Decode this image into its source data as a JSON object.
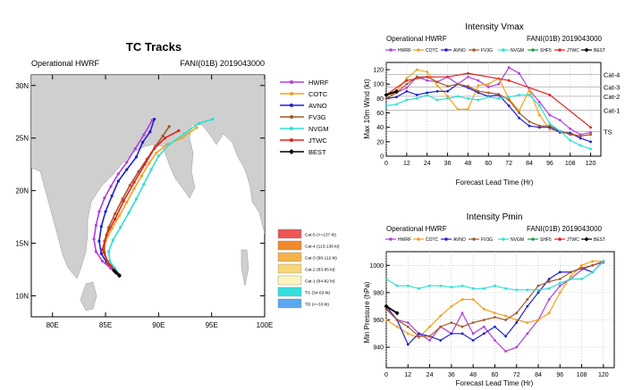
{
  "chart_data": [
    {
      "type": "map",
      "title": "TC Tracks",
      "left_label": "Operational HWRF",
      "right_label": "FANI(01B) 2019043000",
      "lon_range": [
        78,
        100
      ],
      "lat_range": [
        8,
        31
      ],
      "lon_ticks": [
        "80E",
        "85E",
        "90E",
        "95E",
        "100E"
      ],
      "lat_ticks": [
        "10N",
        "15N",
        "20N",
        "25N",
        "30N"
      ],
      "legend": [
        {
          "name": "HWRF",
          "color": "#b040e0"
        },
        {
          "name": "COTC",
          "color": "#f5a020"
        },
        {
          "name": "AVNO",
          "color": "#2020d0"
        },
        {
          "name": "FV3G",
          "color": "#a05a2c"
        },
        {
          "name": "NVGM",
          "color": "#30e0d0"
        },
        {
          "name": "JTWC",
          "color": "#e82020"
        },
        {
          "name": "BEST",
          "color": "#000000"
        }
      ],
      "intensity_legend": [
        {
          "label": "Cat-5 (>=137 kt)",
          "color": "#ee5555"
        },
        {
          "label": "Cat-4 (113-136 kt)",
          "color": "#f08a2a"
        },
        {
          "label": "Cat-3 (96-112 kt)",
          "color": "#f6b24a"
        },
        {
          "label": "Cat-2 (83-95 kt)",
          "color": "#f7d77a"
        },
        {
          "label": "Cat-1 (64-82 kt)",
          "color": "#fbf3c0"
        },
        {
          "label": "TS (34-63 kt)",
          "color": "#33e0e0"
        },
        {
          "label": "TD (<=33 kt)",
          "color": "#5aa8ee"
        }
      ],
      "tracks": [
        {
          "name": "HWRF",
          "points": [
            [
              86.3,
              12.0
            ],
            [
              85.5,
              12.6
            ],
            [
              84.7,
              13.3
            ],
            [
              84.1,
              14.2
            ],
            [
              83.9,
              15.4
            ],
            [
              84.1,
              16.7
            ],
            [
              84.4,
              18.0
            ],
            [
              84.9,
              19.3
            ],
            [
              85.5,
              20.4
            ],
            [
              86.2,
              21.6
            ],
            [
              87.0,
              22.7
            ],
            [
              87.8,
              24.0
            ],
            [
              88.6,
              25.3
            ],
            [
              89.4,
              26.7
            ]
          ]
        },
        {
          "name": "COTC",
          "points": [
            [
              86.3,
              12.0
            ],
            [
              85.8,
              12.6
            ],
            [
              85.2,
              13.3
            ],
            [
              84.8,
              14.1
            ],
            [
              85.0,
              15.2
            ],
            [
              85.6,
              16.4
            ],
            [
              86.3,
              17.6
            ],
            [
              87.0,
              18.9
            ],
            [
              87.7,
              20.2
            ],
            [
              88.4,
              21.4
            ],
            [
              89.1,
              22.6
            ],
            [
              89.8,
              23.6
            ],
            [
              90.8,
              24.4
            ],
            [
              92.2,
              25.0
            ],
            [
              93.6,
              26.0
            ]
          ]
        },
        {
          "name": "AVNO",
          "points": [
            [
              86.3,
              12.0
            ],
            [
              85.7,
              12.6
            ],
            [
              85.1,
              13.2
            ],
            [
              84.6,
              14.0
            ],
            [
              84.4,
              15.2
            ],
            [
              84.6,
              16.6
            ],
            [
              85.0,
              18.0
            ],
            [
              85.6,
              19.5
            ],
            [
              86.2,
              20.9
            ],
            [
              87.0,
              22.0
            ],
            [
              87.9,
              23.2
            ],
            [
              88.5,
              24.6
            ],
            [
              89.2,
              25.6
            ],
            [
              89.6,
              26.8
            ]
          ]
        },
        {
          "name": "FV3G",
          "points": [
            [
              86.3,
              12.0
            ],
            [
              85.8,
              12.6
            ],
            [
              85.2,
              13.2
            ],
            [
              84.9,
              14.1
            ],
            [
              84.9,
              15.2
            ],
            [
              85.3,
              16.5
            ],
            [
              85.9,
              17.8
            ],
            [
              86.6,
              19.2
            ],
            [
              87.3,
              20.5
            ],
            [
              88.1,
              21.8
            ],
            [
              88.9,
              23.0
            ],
            [
              89.7,
              24.2
            ],
            [
              90.4,
              25.2
            ],
            [
              91.0,
              26.1
            ]
          ]
        },
        {
          "name": "NVGM",
          "points": [
            [
              86.3,
              12.0
            ],
            [
              85.9,
              12.6
            ],
            [
              85.4,
              13.3
            ],
            [
              85.3,
              14.2
            ],
            [
              85.7,
              15.3
            ],
            [
              86.4,
              16.5
            ],
            [
              87.2,
              17.9
            ],
            [
              87.9,
              19.2
            ],
            [
              88.6,
              20.6
            ],
            [
              89.3,
              22.0
            ],
            [
              90.0,
              23.3
            ],
            [
              91.0,
              24.4
            ],
            [
              92.4,
              25.4
            ],
            [
              93.8,
              26.4
            ],
            [
              95.1,
              26.8
            ]
          ]
        },
        {
          "name": "JTWC",
          "points": [
            [
              86.3,
              12.0
            ],
            [
              85.3,
              13.0
            ],
            [
              84.7,
              14.4
            ],
            [
              85.1,
              15.8
            ],
            [
              85.9,
              17.3
            ],
            [
              86.7,
              19.0
            ],
            [
              87.7,
              20.8
            ],
            [
              88.7,
              22.5
            ],
            [
              89.6,
              24.0
            ],
            [
              90.6,
              25.0
            ],
            [
              91.9,
              25.7
            ]
          ]
        },
        {
          "name": "BEST",
          "points": [
            [
              86.3,
              11.9
            ],
            [
              86.0,
              12.2
            ],
            [
              85.8,
              12.4
            ]
          ]
        }
      ]
    },
    {
      "type": "line",
      "title": "Intensity Vmax",
      "left_label": "Operational HWRF",
      "right_label": "FANI(01B) 2019043000",
      "xlabel": "Forecast Lead Time (Hr)",
      "ylabel": "Max 10m Wind (kt)",
      "xlim": [
        0,
        126
      ],
      "ylim": [
        0,
        130
      ],
      "x_ticks": [
        0,
        12,
        24,
        36,
        48,
        60,
        72,
        84,
        96,
        108,
        120
      ],
      "y_ticks": [
        0,
        20,
        40,
        60,
        80,
        100,
        120
      ],
      "ref_lines": [
        {
          "label": "Cat-4",
          "value": 113
        },
        {
          "label": "Cat-3",
          "value": 96
        },
        {
          "label": "Cat-2",
          "value": 83
        },
        {
          "label": "Cat-1",
          "value": 64
        },
        {
          "label": "TS",
          "value": 34
        }
      ],
      "legend": [
        "HWRF",
        "COTC",
        "AVNO",
        "FV3G",
        "NVGM",
        "SHF5",
        "JTWC",
        "BEST"
      ],
      "series": [
        {
          "name": "HWRF",
          "color": "#b040e0",
          "x": [
            0,
            6,
            12,
            18,
            24,
            30,
            36,
            42,
            48,
            54,
            60,
            66,
            72,
            78,
            84,
            90,
            96,
            102,
            108,
            114,
            120
          ],
          "y": [
            85,
            88,
            95,
            110,
            105,
            103,
            110,
            100,
            110,
            105,
            96,
            100,
            123,
            115,
            92,
            75,
            57,
            50,
            38,
            30,
            33
          ]
        },
        {
          "name": "COTC",
          "color": "#f5a020",
          "x": [
            0,
            6,
            12,
            18,
            24,
            30,
            36,
            42,
            48,
            54,
            60,
            66,
            72,
            78,
            84,
            90,
            96,
            102,
            108,
            114,
            120
          ],
          "y": [
            80,
            90,
            108,
            120,
            117,
            98,
            83,
            65,
            65,
            98,
            100,
            108,
            80,
            63,
            92,
            57,
            37,
            35,
            32,
            28,
            30
          ]
        },
        {
          "name": "AVNO",
          "color": "#2020d0",
          "x": [
            0,
            6,
            12,
            18,
            24,
            30,
            36,
            42,
            48,
            54,
            60,
            66,
            72,
            78,
            84,
            90,
            96,
            102,
            108,
            114,
            120
          ],
          "y": [
            80,
            82,
            90,
            85,
            88,
            90,
            90,
            100,
            95,
            88,
            83,
            85,
            70,
            53,
            42,
            40,
            40,
            33,
            32,
            25,
            20
          ]
        },
        {
          "name": "FV3G",
          "color": "#a05a2c",
          "x": [
            0,
            6,
            12,
            18,
            24,
            30,
            36,
            42,
            48,
            54,
            60,
            66,
            72,
            78,
            84,
            90,
            96,
            102,
            108,
            114,
            120
          ],
          "y": [
            80,
            88,
            100,
            110,
            110,
            103,
            97,
            100,
            97,
            90,
            88,
            86,
            78,
            60,
            48,
            42,
            42,
            35,
            30,
            28,
            30
          ]
        },
        {
          "name": "NVGM",
          "color": "#30e0d0",
          "x": [
            0,
            6,
            12,
            18,
            24,
            30,
            36,
            42,
            48,
            54,
            60,
            66,
            72,
            78,
            84,
            90,
            96,
            102,
            108,
            114,
            120
          ],
          "y": [
            70,
            72,
            78,
            80,
            85,
            78,
            80,
            83,
            80,
            78,
            82,
            80,
            82,
            85,
            85,
            70,
            45,
            35,
            22,
            15,
            10
          ]
        },
        {
          "name": "JTWC",
          "color": "#e82020",
          "x": [
            0,
            12,
            24,
            36,
            48,
            72,
            96,
            120
          ],
          "y": [
            85,
            105,
            110,
            110,
            115,
            105,
            85,
            40
          ]
        },
        {
          "name": "BEST",
          "color": "#000000",
          "x": [
            0,
            6
          ],
          "y": [
            85,
            90
          ]
        }
      ]
    },
    {
      "type": "line",
      "title": "Intensity Pmin",
      "left_label": "Operational HWRF",
      "right_label": "FANI(01B) 2019043000",
      "xlabel": "Forecast Lead Time (Hr)",
      "ylabel": "Min Pressure (hPa)",
      "xlim": [
        0,
        126
      ],
      "ylim": [
        925,
        1010
      ],
      "x_ticks": [
        0,
        12,
        24,
        36,
        48,
        60,
        72,
        84,
        96,
        108,
        120
      ],
      "y_ticks": [
        940,
        960,
        980,
        1000
      ],
      "legend": [
        "HWRF",
        "COTC",
        "AVNO",
        "FV3G",
        "NVGM",
        "SHF5",
        "JTWC",
        "BEST"
      ],
      "series": [
        {
          "name": "HWRF",
          "color": "#b040e0",
          "x": [
            0,
            6,
            12,
            18,
            24,
            30,
            36,
            42,
            48,
            54,
            60,
            66,
            72,
            78,
            84,
            90,
            96,
            102,
            108,
            114,
            120
          ],
          "y": [
            968,
            960,
            958,
            950,
            945,
            955,
            950,
            965,
            950,
            955,
            945,
            937,
            940,
            950,
            960,
            975,
            985,
            990,
            997,
            1000,
            1002
          ]
        },
        {
          "name": "COTC",
          "color": "#f5a020",
          "x": [
            0,
            6,
            12,
            18,
            24,
            30,
            36,
            42,
            48,
            54,
            60,
            66,
            72,
            78,
            84,
            90,
            96,
            102,
            108,
            114,
            120
          ],
          "y": [
            960,
            955,
            950,
            947,
            955,
            963,
            970,
            975,
            975,
            968,
            965,
            963,
            960,
            958,
            960,
            965,
            980,
            992,
            1000,
            1003,
            1003
          ]
        },
        {
          "name": "AVNO",
          "color": "#2020d0",
          "x": [
            0,
            6,
            12,
            18,
            24,
            30,
            36,
            42,
            48,
            54,
            60,
            66,
            72,
            78,
            84,
            90,
            96,
            102,
            108,
            114,
            120
          ],
          "y": [
            970,
            960,
            942,
            950,
            948,
            945,
            950,
            950,
            945,
            950,
            955,
            948,
            958,
            970,
            980,
            990,
            995,
            995,
            998,
            995,
            1003
          ]
        },
        {
          "name": "FV3G",
          "color": "#a05a2c",
          "x": [
            0,
            6,
            12,
            18,
            24,
            30,
            36,
            42,
            48,
            54,
            60,
            66,
            72,
            78,
            84,
            90,
            96,
            102,
            108,
            114,
            120
          ],
          "y": [
            968,
            960,
            955,
            948,
            948,
            955,
            958,
            955,
            958,
            960,
            962,
            960,
            965,
            975,
            985,
            988,
            990,
            995,
            998,
            1000,
            1003
          ]
        },
        {
          "name": "NVGM",
          "color": "#30e0d0",
          "x": [
            0,
            6,
            12,
            18,
            24,
            30,
            36,
            42,
            48,
            54,
            60,
            66,
            72,
            78,
            84,
            90,
            96,
            102,
            108,
            114,
            120
          ],
          "y": [
            990,
            985,
            985,
            983,
            985,
            985,
            984,
            985,
            983,
            983,
            985,
            983,
            982,
            982,
            982,
            983,
            987,
            990,
            990,
            995,
            1003
          ]
        },
        {
          "name": "BEST",
          "color": "#000000",
          "x": [
            0,
            6
          ],
          "y": [
            970,
            965
          ]
        }
      ]
    }
  ]
}
